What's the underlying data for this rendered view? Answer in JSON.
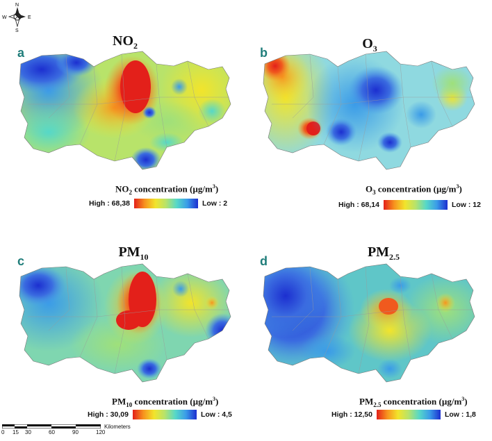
{
  "compass": {
    "n": "N",
    "s": "S",
    "e": "E",
    "w": "W"
  },
  "panels": [
    {
      "letter": "a",
      "pollutant": "NO",
      "sub": "2",
      "legend_main": "NO",
      "legend_sub": "2",
      "legend_rest": " concentration (µg/m",
      "high": "High : 68,38",
      "low": "Low : 2"
    },
    {
      "letter": "b",
      "pollutant": "O",
      "sub": "3",
      "legend_main": "O",
      "legend_sub": "3",
      "legend_rest": " concentration (µg/m",
      "high": "High : 68,14",
      "low": "Low : 12"
    },
    {
      "letter": "c",
      "pollutant": "PM",
      "sub": "10",
      "legend_main": "PM",
      "legend_sub": "10",
      "legend_rest": " concentration (µg/m",
      "high": "High : 30,09",
      "low": "Low : 4,5"
    },
    {
      "letter": "d",
      "pollutant": "PM",
      "sub": "2.5",
      "legend_main": "PM",
      "legend_sub": "2.5",
      "legend_rest": " concentration (µg/m",
      "high": "High : 12,50",
      "low": "Low : 1,8"
    }
  ],
  "unit_tail": ")",
  "unit_sup": "3",
  "scale": {
    "ticks": [
      "0",
      "15",
      "30",
      "60",
      "90",
      "120"
    ],
    "unit": "Kilometers"
  },
  "colors": {
    "high": "#e3201a",
    "mid": "#f2e42b",
    "low": "#1c2fd0"
  }
}
